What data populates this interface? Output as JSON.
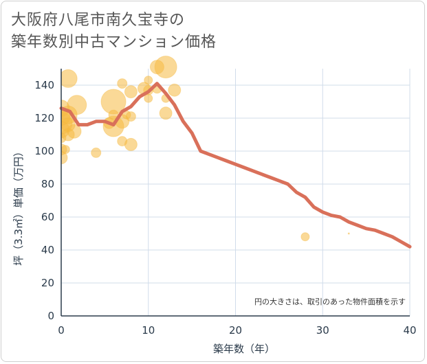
{
  "title_line1": "大阪府八尾市南久宝寺の",
  "title_line2": "築年数別中古マンション価格",
  "colors": {
    "bubble": "#f5b942",
    "line": "#d9705a",
    "grid": "#d0dcea",
    "axis": "#2a3a4a"
  },
  "chart_data": {
    "type": "scatter",
    "title": "大阪府八尾市南久宝寺の築年数別中古マンション価格",
    "xlabel": "築年数（年）",
    "ylabel": "坪（3.3㎡）単価（万円）",
    "xlim": [
      0,
      40
    ],
    "ylim": [
      0,
      150
    ],
    "x_ticks": [
      "0",
      "10",
      "20",
      "30",
      "40"
    ],
    "y_ticks": [
      "0",
      "20",
      "40",
      "60",
      "80",
      "100",
      "120",
      "140"
    ],
    "grid": true,
    "note": "円の大きさは、取引のあった物件面積を示す",
    "bubbles": [
      {
        "x": 0,
        "y": 96,
        "r": 9
      },
      {
        "x": 0,
        "y": 101,
        "r": 8
      },
      {
        "x": 0,
        "y": 108,
        "r": 7
      },
      {
        "x": 0,
        "y": 113,
        "r": 12
      },
      {
        "x": 0,
        "y": 117,
        "r": 16
      },
      {
        "x": 0,
        "y": 121,
        "r": 13
      },
      {
        "x": 0,
        "y": 126,
        "r": 12
      },
      {
        "x": 0.5,
        "y": 101,
        "r": 6
      },
      {
        "x": 0.8,
        "y": 110,
        "r": 9
      },
      {
        "x": 0.8,
        "y": 116,
        "r": 10
      },
      {
        "x": 0.8,
        "y": 122,
        "r": 13
      },
      {
        "x": 0.8,
        "y": 144,
        "r": 13
      },
      {
        "x": 1.5,
        "y": 112,
        "r": 10
      },
      {
        "x": 1.8,
        "y": 128,
        "r": 14
      },
      {
        "x": 4,
        "y": 99,
        "r": 7
      },
      {
        "x": 5.5,
        "y": 117,
        "r": 8
      },
      {
        "x": 6,
        "y": 130,
        "r": 18
      },
      {
        "x": 6,
        "y": 122,
        "r": 7
      },
      {
        "x": 6,
        "y": 115,
        "r": 15
      },
      {
        "x": 7,
        "y": 141,
        "r": 7
      },
      {
        "x": 7,
        "y": 118,
        "r": 10
      },
      {
        "x": 7,
        "y": 106,
        "r": 7
      },
      {
        "x": 7.5,
        "y": 122,
        "r": 6
      },
      {
        "x": 8,
        "y": 104,
        "r": 9
      },
      {
        "x": 8,
        "y": 121,
        "r": 7
      },
      {
        "x": 8,
        "y": 136,
        "r": 9
      },
      {
        "x": 9.5,
        "y": 138,
        "r": 9
      },
      {
        "x": 10,
        "y": 137,
        "r": 7
      },
      {
        "x": 10,
        "y": 132,
        "r": 6
      },
      {
        "x": 10,
        "y": 143,
        "r": 6
      },
      {
        "x": 11,
        "y": 151,
        "r": 10
      },
      {
        "x": 11,
        "y": 138,
        "r": 7
      },
      {
        "x": 12,
        "y": 151,
        "r": 16
      },
      {
        "x": 12,
        "y": 132,
        "r": 6
      },
      {
        "x": 12,
        "y": 123,
        "r": 9
      },
      {
        "x": 13,
        "y": 137,
        "r": 9
      },
      {
        "x": 28,
        "y": 48,
        "r": 6
      },
      {
        "x": 33,
        "y": 50,
        "r": 1
      }
    ],
    "series": [
      {
        "x": [
          0,
          1,
          2,
          3,
          4,
          5,
          6,
          7,
          8,
          9,
          10,
          11,
          12,
          13,
          14,
          15,
          16,
          17,
          18,
          19,
          20,
          21,
          22,
          23,
          24,
          25,
          26,
          27,
          28,
          29,
          30,
          31,
          32,
          33,
          34,
          35,
          36,
          37,
          38,
          39,
          40
        ],
        "y": [
          126,
          124,
          116,
          116,
          118,
          118,
          116,
          124,
          127,
          133,
          136,
          141,
          135,
          128,
          118,
          111,
          100,
          98,
          96,
          94,
          92,
          90,
          88,
          86,
          84,
          82,
          80,
          75,
          72,
          66,
          63,
          61,
          60,
          57,
          55,
          53,
          52,
          50,
          48,
          45,
          42
        ]
      }
    ]
  }
}
